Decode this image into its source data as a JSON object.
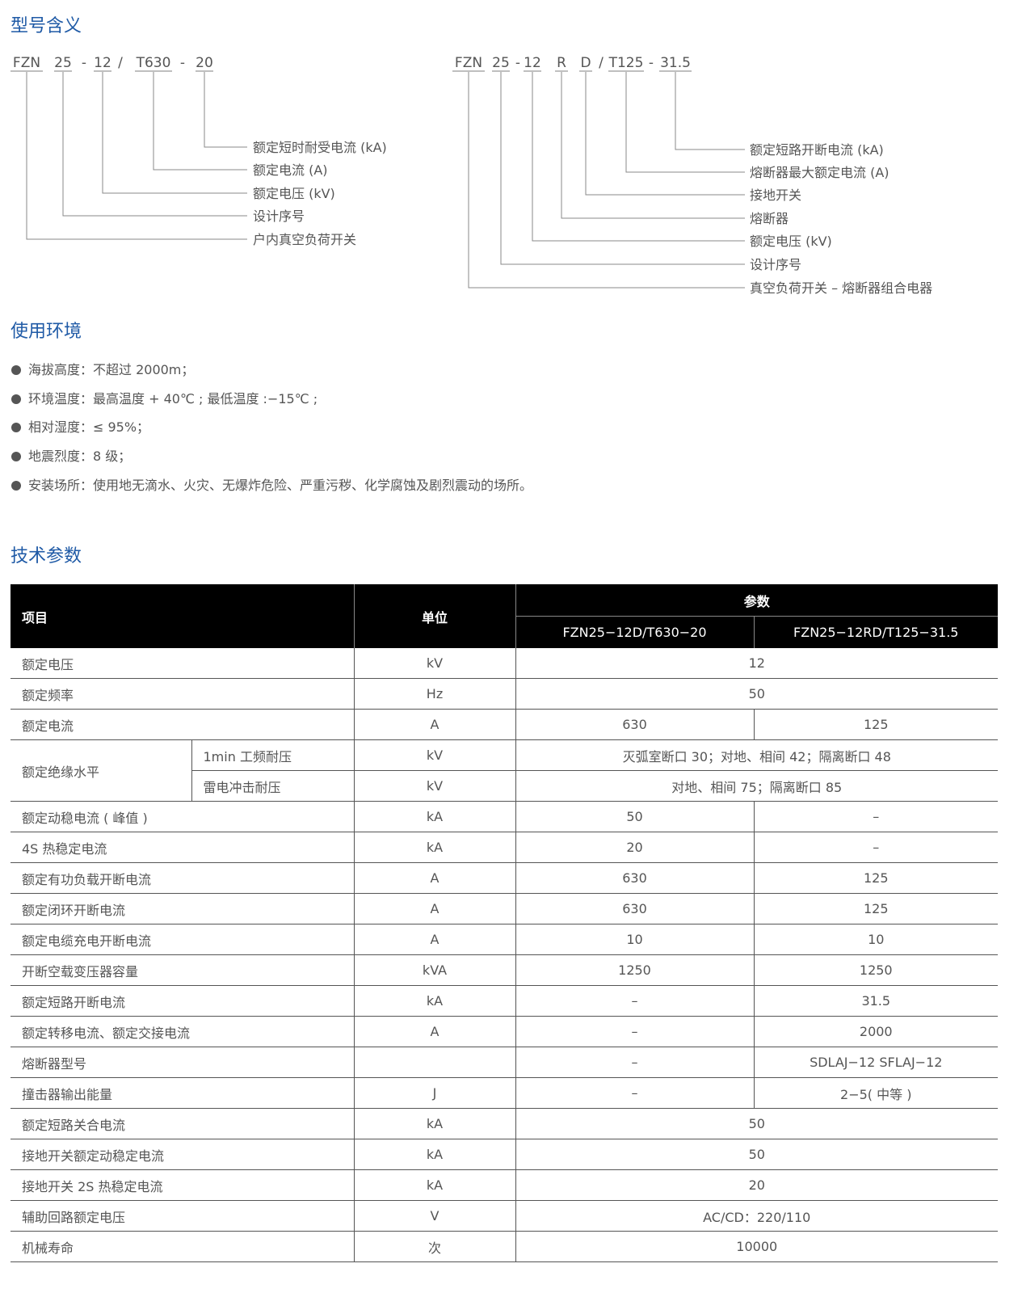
{
  "sections": {
    "model": "型号含义",
    "env": "使用环境",
    "tech": "技术参数"
  },
  "model_left": {
    "codes": [
      {
        "t": "FZN",
        "u": true
      },
      {
        "t": "25",
        "u": true
      },
      {
        "t": "-",
        "u": false
      },
      {
        "t": "12",
        "u": true
      },
      {
        "t": "/",
        "u": false
      },
      {
        "t": "T630",
        "u": true
      },
      {
        "t": "-",
        "u": false
      },
      {
        "t": "20",
        "u": true
      }
    ],
    "labels": [
      "额定短时耐受电流 (kA)",
      "额定电流 (A)",
      "额定电压 (kV)",
      "设计序号",
      "户内真空负荷开关"
    ]
  },
  "model_right": {
    "codes": [
      {
        "t": "FZN",
        "u": true
      },
      {
        "t": "25",
        "u": true
      },
      {
        "t": "-",
        "u": false
      },
      {
        "t": "12",
        "u": true
      },
      {
        "t": "R",
        "u": true
      },
      {
        "t": "D",
        "u": true
      },
      {
        "t": "/",
        "u": false
      },
      {
        "t": "T125",
        "u": true
      },
      {
        "t": "-",
        "u": false
      },
      {
        "t": "31.5",
        "u": true
      }
    ],
    "labels": [
      "额定短路开断电流 (kA)",
      "熔断器最大额定电流 (A)",
      "接地开关",
      "熔断器",
      "额定电压 (kV)",
      "设计序号",
      "真空负荷开关 – 熔断器组合电器"
    ]
  },
  "environment": [
    "海拔高度：不超过 2000m；",
    "环境温度：最高温度 + 40℃ ; 最低温度 :−15℃ ;",
    "相对湿度：≤ 95%；",
    "地震烈度：8 级；",
    "安装场所：使用地无滴水、火灾、无爆炸危险、严重污秽、化学腐蚀及剧烈震动的场所。"
  ],
  "table": {
    "headers": {
      "item": "项目",
      "unit": "单位",
      "params": "参数",
      "model1": "FZN25−12D/T630−20",
      "model2": "FZN25−12RD/T125−31.5"
    },
    "rows": [
      {
        "item": "额定电压",
        "unit": "kV",
        "v": [
          "12"
        ]
      },
      {
        "item": "额定频率",
        "unit": "Hz",
        "v": [
          "50"
        ]
      },
      {
        "item": "额定电流",
        "unit": "A",
        "v": [
          "630",
          "125"
        ]
      },
      {
        "item": "额定绝缘水平",
        "sub": "1min 工频耐压",
        "unit": "kV",
        "v": [
          "灭弧室断口 30；对地、相间 42；隔离断口 48"
        ]
      },
      {
        "sub": "雷电冲击耐压",
        "unit": "kV",
        "v": [
          "对地、相间 75；隔离断口 85"
        ]
      },
      {
        "item": "额定动稳电流 ( 峰值 )",
        "unit": "kA",
        "v": [
          "50",
          "–"
        ]
      },
      {
        "item": "4S 热稳定电流",
        "unit": "kA",
        "v": [
          "20",
          "–"
        ]
      },
      {
        "item": "额定有功负载开断电流",
        "unit": "A",
        "v": [
          "630",
          "125"
        ]
      },
      {
        "item": "额定闭环开断电流",
        "unit": "A",
        "v": [
          "630",
          "125"
        ]
      },
      {
        "item": "额定电缆充电开断电流",
        "unit": "A",
        "v": [
          "10",
          "10"
        ]
      },
      {
        "item": "开断空载变压器容量",
        "unit": "kVA",
        "v": [
          "1250",
          "1250"
        ]
      },
      {
        "item": "额定短路开断电流",
        "unit": "kA",
        "v": [
          "–",
          "31.5"
        ]
      },
      {
        "item": "额定转移电流、额定交接电流",
        "unit": "A",
        "v": [
          "–",
          "2000"
        ]
      },
      {
        "item": "熔断器型号",
        "unit": "",
        "v": [
          "–",
          "SDLAJ−12 SFLAJ−12"
        ]
      },
      {
        "item": "撞击器输出能量",
        "unit": "J",
        "v": [
          "–",
          "2−5( 中等 )"
        ]
      },
      {
        "item": "额定短路关合电流",
        "unit": "kA",
        "v": [
          "50"
        ]
      },
      {
        "item": "接地开关额定动稳定电流",
        "unit": "kA",
        "v": [
          "50"
        ]
      },
      {
        "item": "接地开关 2S 热稳定电流",
        "unit": "kA",
        "v": [
          "20"
        ]
      },
      {
        "item": "辅助回路额定电压",
        "unit": "V",
        "v": [
          "AC/CD：220/110"
        ]
      },
      {
        "item": "机械寿命",
        "unit": "次",
        "v": [
          "10000"
        ]
      }
    ]
  }
}
